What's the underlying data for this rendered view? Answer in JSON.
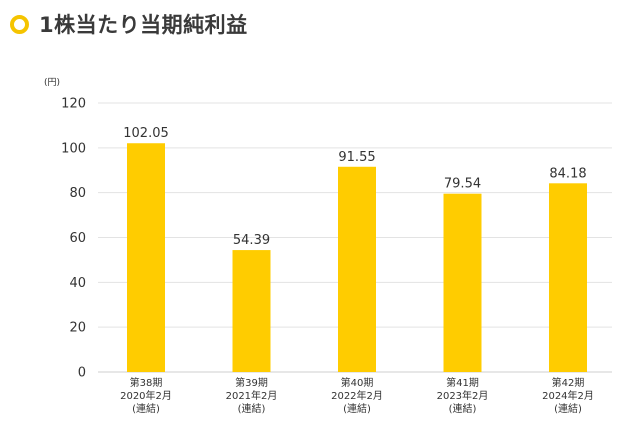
{
  "title": "1株当たり当期純利益",
  "colors": {
    "bar": "#FFCC00",
    "ring": "#F5C400",
    "grid": "#e3e3e3",
    "text": "#333333"
  },
  "chart_data": {
    "type": "bar",
    "title": "1株当たり当期純利益",
    "unit_label": "(円)",
    "ylim": [
      0,
      120
    ],
    "yticks": [
      "0",
      "20",
      "40",
      "60",
      "80",
      "100",
      "120"
    ],
    "grid": true,
    "categories": [
      [
        "第38期",
        "2020年2月",
        "(連結)"
      ],
      [
        "第39期",
        "2021年2月",
        "(連結)"
      ],
      [
        "第40期",
        "2022年2月",
        "(連結)"
      ],
      [
        "第41期",
        "2023年2月",
        "(連結)"
      ],
      [
        "第42期",
        "2024年2月",
        "(連結)"
      ]
    ],
    "values": [
      102.05,
      54.39,
      91.55,
      79.54,
      84.18
    ],
    "value_labels": [
      "102.05",
      "54.39",
      "91.55",
      "79.54",
      "84.18"
    ]
  }
}
